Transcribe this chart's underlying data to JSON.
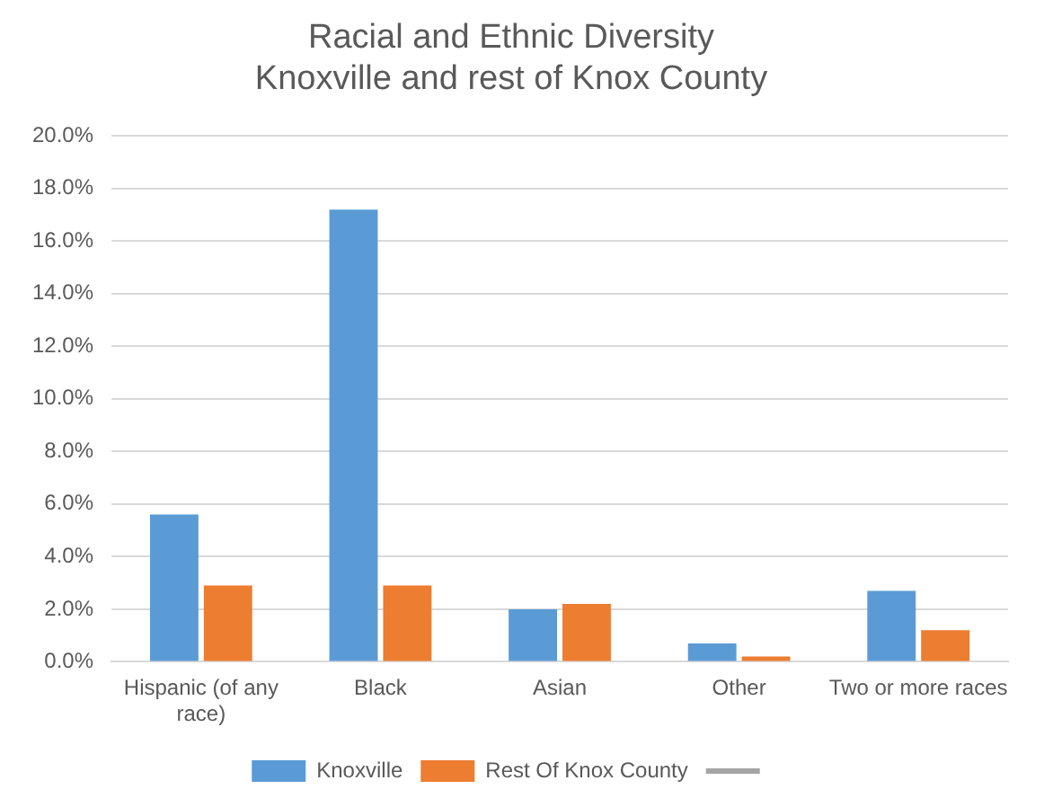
{
  "chart_data": {
    "type": "bar",
    "title": "Racial and Ethnic Diversity\nKnoxville and rest of Knox County",
    "categories": [
      "Hispanic (of any race)",
      "Black",
      "Asian",
      "Other",
      "Two or more races"
    ],
    "series": [
      {
        "name": "Knoxville",
        "color": "#5b9bd5",
        "values": [
          5.6,
          17.2,
          2.0,
          0.7,
          2.7
        ]
      },
      {
        "name": "Rest Of Knox County",
        "color": "#ed7d31",
        "values": [
          2.9,
          2.9,
          2.2,
          0.2,
          1.2
        ]
      },
      {
        "type": "line",
        "color": "#a5a5a5",
        "values": [
          null,
          null,
          null,
          null,
          null
        ]
      }
    ],
    "ylim": [
      0,
      20
    ],
    "yticks": [
      {
        "value": 0,
        "label": "0.0%"
      },
      {
        "value": 2,
        "label": "2.0%"
      },
      {
        "value": 4,
        "label": "4.0%"
      },
      {
        "value": 6,
        "label": "6.0%"
      },
      {
        "value": 8,
        "label": "8.0%"
      },
      {
        "value": 10,
        "label": "10.0%"
      },
      {
        "value": 12,
        "label": "12.0%"
      },
      {
        "value": 14,
        "label": "14.0%"
      },
      {
        "value": 16,
        "label": "16.0%"
      },
      {
        "value": 18,
        "label": "18.0%"
      },
      {
        "value": 20,
        "label": "20.0%"
      }
    ],
    "grid": "y",
    "legend": "bottom"
  }
}
